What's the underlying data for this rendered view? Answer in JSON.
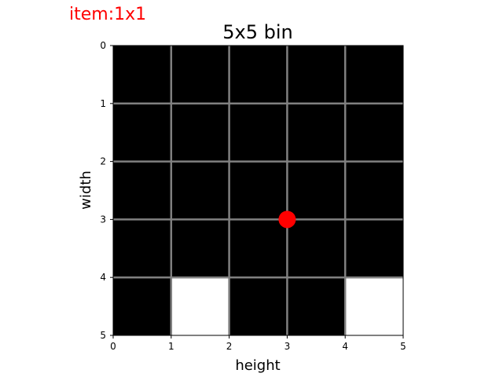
{
  "item_label": {
    "text": "item:1x1",
    "color": "#ff0000"
  },
  "chart_data": {
    "type": "heatmap",
    "title": "5x5 bin",
    "xlabel": "height",
    "ylabel": "width",
    "xlim": [
      0,
      5
    ],
    "ylim": [
      0,
      5
    ],
    "y_inverted": true,
    "xticks": [
      "0",
      "1",
      "2",
      "3",
      "4",
      "5"
    ],
    "yticks": [
      "0",
      "1",
      "2",
      "3",
      "4",
      "5"
    ],
    "grid": true,
    "legend": "none",
    "cell_colors": {
      "filled": "#000000",
      "empty": "#ffffff",
      "grid_line": "#808080"
    },
    "cells": [
      [
        1,
        1,
        1,
        1,
        1
      ],
      [
        1,
        1,
        1,
        1,
        1
      ],
      [
        1,
        1,
        1,
        1,
        1
      ],
      [
        1,
        1,
        1,
        1,
        1
      ],
      [
        1,
        0,
        1,
        1,
        0
      ]
    ],
    "marker": {
      "x": 3,
      "y": 3,
      "color": "#ff0000"
    }
  }
}
